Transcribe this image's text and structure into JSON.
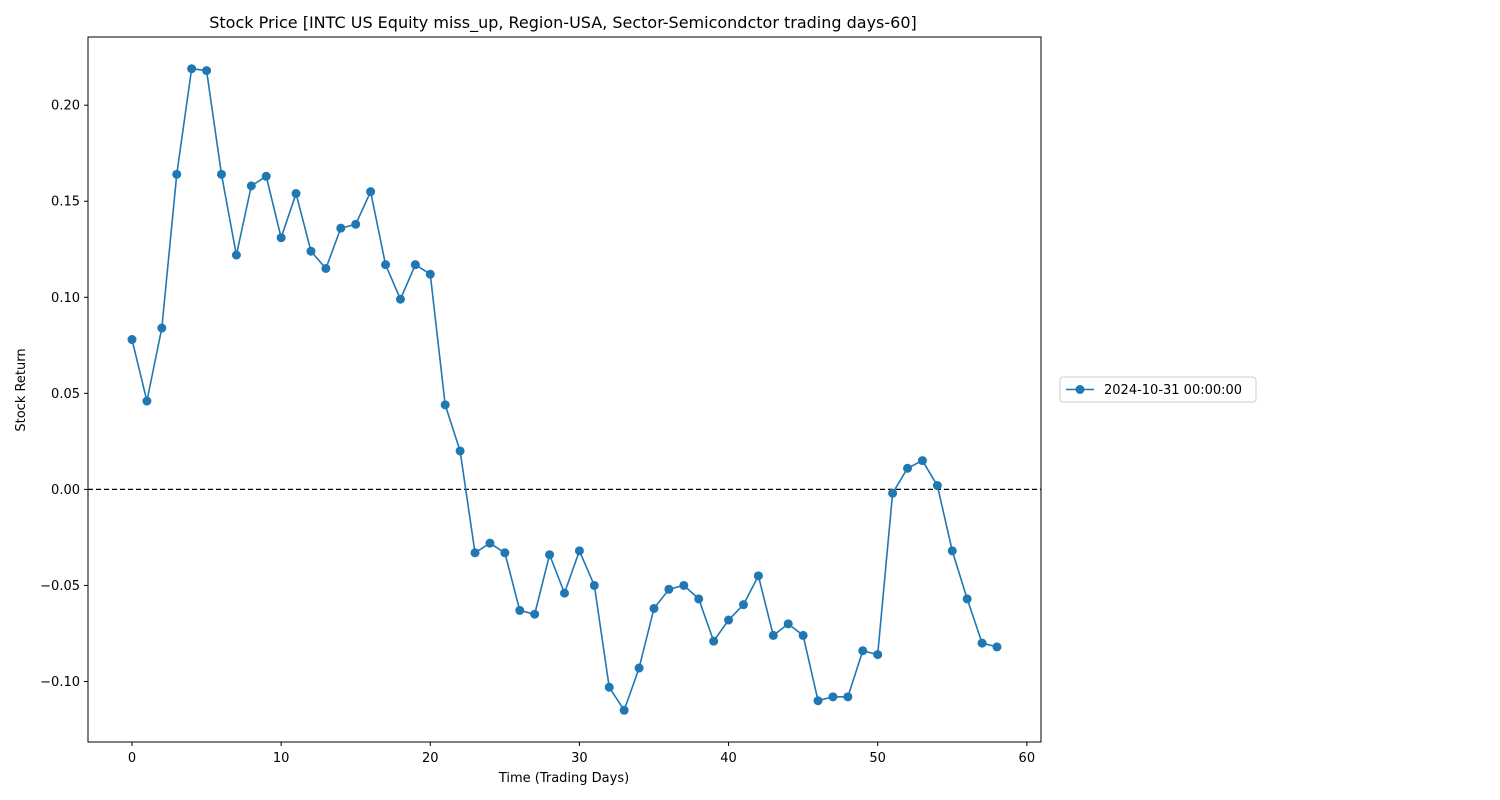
{
  "chart_data": {
    "type": "line",
    "title": "Stock Price [INTC US Equity miss_up, Region-USA, Sector-Semicondctor trading days-60]",
    "xlabel": "Time (Trading Days)",
    "ylabel": "Stock Return",
    "xlim": [
      -2.95,
      60.95
    ],
    "ylim": [
      -0.1315,
      0.2355
    ],
    "xticks": [
      0,
      10,
      20,
      30,
      40,
      50,
      60
    ],
    "xtick_labels": [
      "0",
      "10",
      "20",
      "30",
      "40",
      "50",
      "60"
    ],
    "yticks": [
      -0.1,
      -0.05,
      0.0,
      0.05,
      0.1,
      0.15,
      0.2
    ],
    "ytick_labels": [
      "−0.10",
      "−0.05",
      "0.00",
      "0.05",
      "0.10",
      "0.15",
      "0.20"
    ],
    "grid": false,
    "legend_position": "center-right-outside",
    "reference_line": {
      "y": 0.0,
      "style": "dashed",
      "color": "#000000"
    },
    "series": [
      {
        "name": "2024-10-31 00:00:00",
        "color": "#1f77b4",
        "marker": "circle",
        "x": [
          0,
          1,
          2,
          3,
          4,
          5,
          6,
          7,
          8,
          9,
          10,
          11,
          12,
          13,
          14,
          15,
          16,
          17,
          18,
          19,
          20,
          21,
          22,
          23,
          24,
          25,
          26,
          27,
          28,
          29,
          30,
          31,
          32,
          33,
          34,
          35,
          36,
          37,
          38,
          39,
          40,
          41,
          42,
          43,
          44,
          45,
          46,
          47,
          48,
          49,
          50,
          51,
          52,
          53,
          54,
          55,
          56,
          57,
          58
        ],
        "values": [
          0.078,
          0.046,
          0.084,
          0.164,
          0.219,
          0.218,
          0.164,
          0.122,
          0.158,
          0.163,
          0.131,
          0.154,
          0.124,
          0.115,
          0.136,
          0.138,
          0.155,
          0.117,
          0.099,
          0.117,
          0.112,
          0.044,
          0.02,
          -0.033,
          -0.028,
          -0.033,
          -0.063,
          -0.065,
          -0.034,
          -0.054,
          -0.032,
          -0.05,
          -0.103,
          -0.115,
          -0.093,
          -0.062,
          -0.052,
          -0.05,
          -0.057,
          -0.079,
          -0.068,
          -0.06,
          -0.045,
          -0.076,
          -0.07,
          -0.076,
          -0.11,
          -0.108,
          -0.108,
          -0.084,
          -0.086,
          -0.002,
          0.011,
          0.015,
          0.002,
          -0.032,
          -0.057,
          -0.08,
          -0.082
        ]
      }
    ]
  }
}
